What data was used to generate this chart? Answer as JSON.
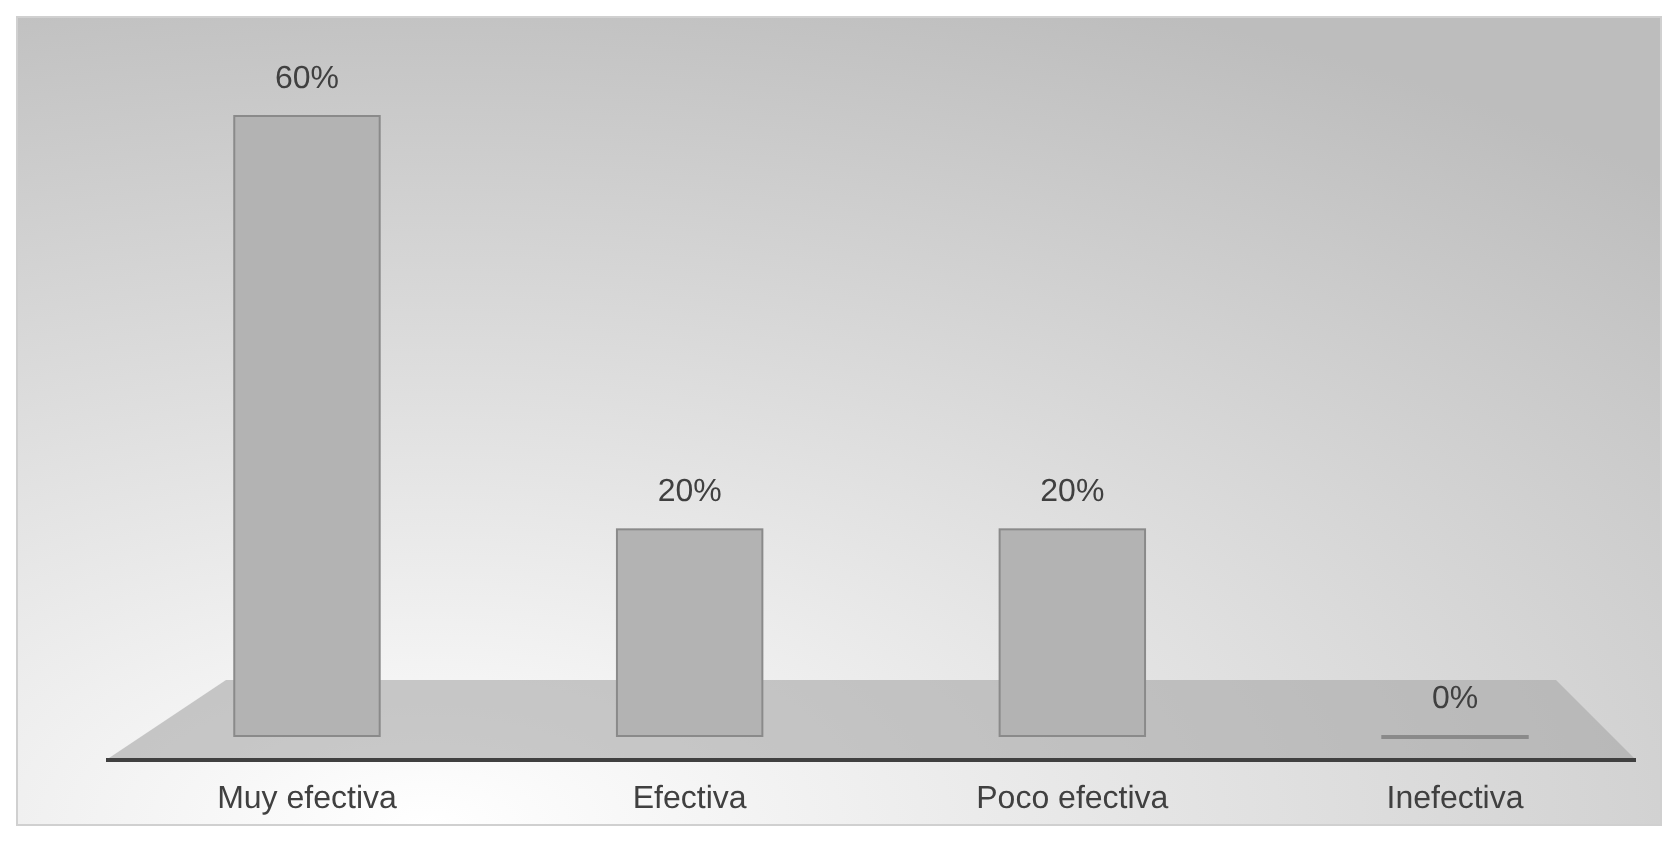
{
  "chart_data": {
    "type": "bar",
    "categories": [
      "Muy efectiva",
      "Efectiva",
      "Poco efectiva",
      "Inefectiva"
    ],
    "values": [
      60,
      20,
      20,
      0
    ],
    "value_labels": [
      "60%",
      "20%",
      "20%",
      "0%"
    ],
    "color": "#b3b3b3",
    "ylim": [
      0,
      60
    ]
  }
}
